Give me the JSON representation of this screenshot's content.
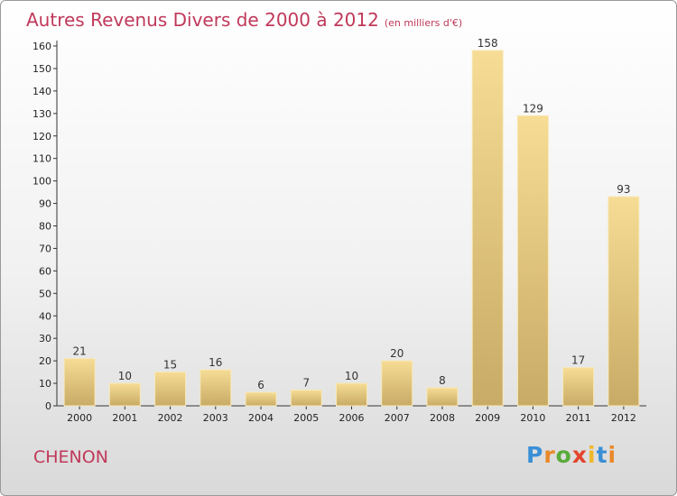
{
  "chart_data": {
    "type": "bar",
    "title": "Autres Revenus Divers de 2000 à 2012",
    "subtitle": "(en milliers d'€)",
    "categories": [
      "2000",
      "2001",
      "2002",
      "2003",
      "2004",
      "2005",
      "2006",
      "2007",
      "2008",
      "2009",
      "2010",
      "2011",
      "2012"
    ],
    "values": [
      21,
      10,
      15,
      16,
      6,
      7,
      10,
      20,
      8,
      158,
      129,
      17,
      93
    ],
    "ylim": [
      0,
      160
    ],
    "yticks": [
      0,
      10,
      20,
      30,
      40,
      50,
      60,
      70,
      80,
      90,
      100,
      110,
      120,
      130,
      140,
      150,
      160
    ],
    "grid": false,
    "legend": "none",
    "bar_color": "#e8cc80",
    "title_color": "#c0395a"
  },
  "footer": {
    "town": "CHENON",
    "logo_text": "Proxiti"
  }
}
